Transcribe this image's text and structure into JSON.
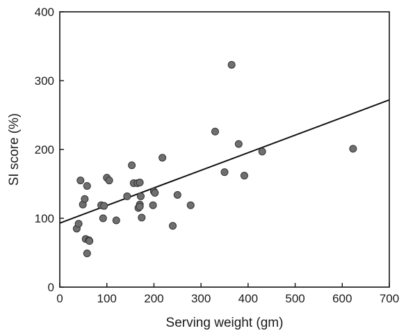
{
  "chart_data": {
    "type": "scatter",
    "xlabel": "Serving weight (gm)",
    "ylabel": "SI score (%)",
    "xlim": [
      0,
      700
    ],
    "ylim": [
      0,
      400
    ],
    "xticks": [
      0,
      100,
      200,
      300,
      400,
      500,
      600,
      700
    ],
    "yticks": [
      0,
      100,
      200,
      300,
      400
    ],
    "grid": false,
    "legend": "none",
    "colors": {
      "point": "#6f6f6f",
      "line": "#111111",
      "axis": "#111111"
    },
    "points": [
      {
        "x": 36,
        "y": 85
      },
      {
        "x": 40,
        "y": 92
      },
      {
        "x": 44,
        "y": 155
      },
      {
        "x": 49,
        "y": 120
      },
      {
        "x": 53,
        "y": 128
      },
      {
        "x": 55,
        "y": 70
      },
      {
        "x": 58,
        "y": 147
      },
      {
        "x": 58,
        "y": 49
      },
      {
        "x": 62,
        "y": 68
      },
      {
        "x": 63,
        "y": 67
      },
      {
        "x": 88,
        "y": 119
      },
      {
        "x": 92,
        "y": 100
      },
      {
        "x": 94,
        "y": 118
      },
      {
        "x": 100,
        "y": 159
      },
      {
        "x": 105,
        "y": 155
      },
      {
        "x": 120,
        "y": 97
      },
      {
        "x": 143,
        "y": 132
      },
      {
        "x": 153,
        "y": 177
      },
      {
        "x": 157,
        "y": 151
      },
      {
        "x": 165,
        "y": 151
      },
      {
        "x": 167,
        "y": 115
      },
      {
        "x": 170,
        "y": 152
      },
      {
        "x": 170,
        "y": 120
      },
      {
        "x": 170,
        "y": 117
      },
      {
        "x": 172,
        "y": 132
      },
      {
        "x": 174,
        "y": 101
      },
      {
        "x": 198,
        "y": 119
      },
      {
        "x": 200,
        "y": 139
      },
      {
        "x": 202,
        "y": 137
      },
      {
        "x": 218,
        "y": 188
      },
      {
        "x": 240,
        "y": 89
      },
      {
        "x": 250,
        "y": 134
      },
      {
        "x": 278,
        "y": 119
      },
      {
        "x": 330,
        "y": 226
      },
      {
        "x": 350,
        "y": 167
      },
      {
        "x": 365,
        "y": 323
      },
      {
        "x": 380,
        "y": 208
      },
      {
        "x": 392,
        "y": 162
      },
      {
        "x": 430,
        "y": 197
      },
      {
        "x": 623,
        "y": 201
      }
    ],
    "regression": {
      "x": [
        0,
        700
      ],
      "y": [
        93,
        272
      ]
    }
  }
}
